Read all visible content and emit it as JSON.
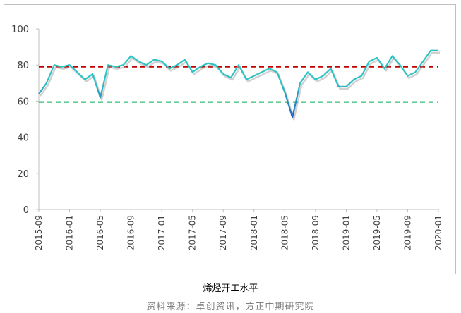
{
  "caption": "烯烃开工水平",
  "source": "资料来源：卓创资讯，方正中期研究院",
  "colors": {
    "line_light": "#2ec4c4",
    "line_dark": "#1f5fbf",
    "ref_red": "#c00000",
    "ref_green": "#00b050",
    "axis": "#bfbfbf"
  },
  "chart_data": {
    "type": "line",
    "title": "",
    "xlabel": "",
    "ylabel": "",
    "ylim": [
      0,
      100
    ],
    "yticks": [
      0,
      20,
      40,
      60,
      80,
      100
    ],
    "xlim": [
      "2015-09",
      "2020-01"
    ],
    "xticks": [
      "2015-09",
      "2016-01",
      "2016-05",
      "2016-09",
      "2017-01",
      "2017-05",
      "2017-09",
      "2018-01",
      "2018-05",
      "2018-09",
      "2019-01",
      "2019-05",
      "2019-09",
      "2020-01"
    ],
    "grid": false,
    "legend": "none",
    "reference_lines": [
      {
        "y": 79,
        "color": "#c00000",
        "style": "dashed"
      },
      {
        "y": 59.5,
        "color": "#00b050",
        "style": "dashed"
      }
    ],
    "series": [
      {
        "x": [
          "2015-09",
          "2015-10",
          "2015-11",
          "2015-12",
          "2016-01",
          "2016-02",
          "2016-03",
          "2016-04",
          "2016-05",
          "2016-06",
          "2016-07",
          "2016-08",
          "2016-09",
          "2016-10",
          "2016-11",
          "2016-12",
          "2017-01",
          "2017-02",
          "2017-03",
          "2017-04",
          "2017-05",
          "2017-06",
          "2017-07",
          "2017-08",
          "2017-09",
          "2017-10",
          "2017-11",
          "2017-12",
          "2018-01",
          "2018-02",
          "2018-03",
          "2018-04",
          "2018-05",
          "2018-06",
          "2018-07",
          "2018-08",
          "2018-09",
          "2018-10",
          "2018-11",
          "2018-12",
          "2019-01",
          "2019-02",
          "2019-03",
          "2019-04",
          "2019-05",
          "2019-06",
          "2019-07",
          "2019-08",
          "2019-09",
          "2019-10",
          "2019-11",
          "2019-12",
          "2020-01"
        ],
        "values": [
          64,
          70,
          80,
          79,
          80,
          76,
          72,
          75,
          62,
          80,
          79,
          80,
          85,
          82,
          80,
          83,
          82,
          78,
          80,
          83,
          76,
          79,
          81,
          80,
          75,
          73,
          80,
          72,
          74,
          76,
          78,
          76,
          65,
          51,
          70,
          76,
          72,
          74,
          78,
          68,
          68,
          72,
          74,
          82,
          84,
          78,
          85,
          80,
          74,
          76,
          82,
          88,
          88
        ]
      }
    ]
  }
}
